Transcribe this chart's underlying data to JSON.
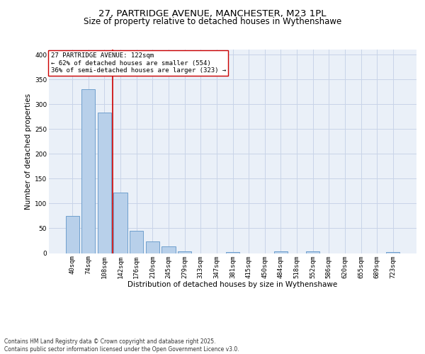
{
  "title_line1": "27, PARTRIDGE AVENUE, MANCHESTER, M23 1PL",
  "title_line2": "Size of property relative to detached houses in Wythenshawe",
  "xlabel": "Distribution of detached houses by size in Wythenshawe",
  "ylabel": "Number of detached properties",
  "bar_labels": [
    "40sqm",
    "74sqm",
    "108sqm",
    "142sqm",
    "176sqm",
    "210sqm",
    "245sqm",
    "279sqm",
    "313sqm",
    "347sqm",
    "381sqm",
    "415sqm",
    "450sqm",
    "484sqm",
    "518sqm",
    "552sqm",
    "586sqm",
    "620sqm",
    "655sqm",
    "689sqm",
    "723sqm"
  ],
  "bar_values": [
    75,
    330,
    283,
    122,
    45,
    23,
    13,
    4,
    0,
    0,
    2,
    0,
    0,
    4,
    0,
    3,
    0,
    0,
    0,
    0,
    2
  ],
  "bar_color": "#b8d0ea",
  "bar_edge_color": "#6096c8",
  "grid_color": "#c8d4e8",
  "background_color": "#eaf0f8",
  "vline_x_index": 2.5,
  "vline_color": "#cc0000",
  "annotation_text": "27 PARTRIDGE AVENUE: 122sqm\n← 62% of detached houses are smaller (554)\n36% of semi-detached houses are larger (323) →",
  "annotation_box_color": "#ffffff",
  "annotation_box_edge": "#cc0000",
  "ylim": [
    0,
    410
  ],
  "yticks": [
    0,
    50,
    100,
    150,
    200,
    250,
    300,
    350,
    400
  ],
  "footer_text": "Contains HM Land Registry data © Crown copyright and database right 2025.\nContains public sector information licensed under the Open Government Licence v3.0.",
  "title_fontsize": 9.5,
  "subtitle_fontsize": 8.5,
  "axis_label_fontsize": 7.5,
  "tick_fontsize": 6.5,
  "annotation_fontsize": 6.5,
  "footer_fontsize": 5.5
}
